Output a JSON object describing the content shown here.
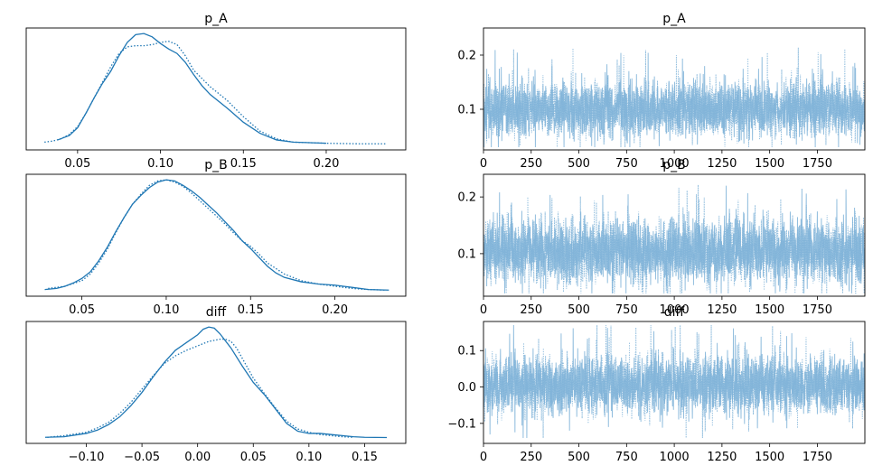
{
  "chart_data": [
    {
      "type": "line",
      "title": "p_A",
      "xlabel": "",
      "ylabel": "",
      "xlim": [
        0.019,
        0.248
      ],
      "ylim": [
        -0.05,
        1.05
      ],
      "y_ticks_visible": false,
      "x_ticks": [
        "0.05",
        "0.10",
        "0.15",
        "0.20"
      ],
      "series": [
        {
          "style": "solid",
          "color": "#1f77b4",
          "x": [
            0.038,
            0.045,
            0.05,
            0.055,
            0.06,
            0.065,
            0.07,
            0.075,
            0.08,
            0.085,
            0.09,
            0.095,
            0.1,
            0.105,
            0.11,
            0.115,
            0.12,
            0.125,
            0.13,
            0.14,
            0.15,
            0.16,
            0.17,
            0.18,
            0.19,
            0.2
          ],
          "y": [
            0.04,
            0.08,
            0.15,
            0.28,
            0.42,
            0.55,
            0.66,
            0.8,
            0.92,
            0.99,
            1.0,
            0.97,
            0.91,
            0.86,
            0.82,
            0.74,
            0.63,
            0.53,
            0.45,
            0.33,
            0.2,
            0.1,
            0.04,
            0.02,
            0.015,
            0.01
          ]
        },
        {
          "style": "dotted",
          "color": "#1f77b4",
          "x": [
            0.03,
            0.035,
            0.04,
            0.045,
            0.05,
            0.055,
            0.06,
            0.065,
            0.07,
            0.075,
            0.08,
            0.085,
            0.09,
            0.095,
            0.1,
            0.105,
            0.11,
            0.115,
            0.12,
            0.13,
            0.14,
            0.15,
            0.16,
            0.17,
            0.18,
            0.2,
            0.22,
            0.236
          ],
          "y": [
            0.02,
            0.03,
            0.05,
            0.09,
            0.16,
            0.28,
            0.42,
            0.56,
            0.7,
            0.82,
            0.88,
            0.89,
            0.89,
            0.9,
            0.92,
            0.93,
            0.9,
            0.8,
            0.67,
            0.52,
            0.4,
            0.25,
            0.12,
            0.05,
            0.02,
            0.01,
            0.005,
            0.005
          ]
        }
      ]
    },
    {
      "type": "line",
      "title": "p_A",
      "xlabel": "",
      "ylabel": "",
      "xlim": [
        0,
        1999
      ],
      "ylim": [
        0.025,
        0.25
      ],
      "x_ticks": [
        "0",
        "250",
        "500",
        "750",
        "1000",
        "1250",
        "1500",
        "1750"
      ],
      "y_ticks": [
        "0.1",
        "0.2"
      ],
      "series": [
        {
          "style": "solid",
          "color": "#7fb3d8",
          "mean": 0.1,
          "sd": 0.025,
          "min": 0.03,
          "max": 0.24,
          "n": 2000
        },
        {
          "style": "dotted",
          "color": "#7fb3d8",
          "mean": 0.1,
          "sd": 0.025,
          "min": 0.03,
          "max": 0.24,
          "n": 2000
        }
      ]
    },
    {
      "type": "line",
      "title": "p_B",
      "xlabel": "",
      "ylabel": "",
      "xlim": [
        0.017,
        0.242
      ],
      "ylim": [
        -0.05,
        1.05
      ],
      "y_ticks_visible": false,
      "x_ticks": [
        "0.05",
        "0.10",
        "0.15",
        "0.20"
      ],
      "series": [
        {
          "style": "solid",
          "color": "#1f77b4",
          "x": [
            0.028,
            0.035,
            0.04,
            0.045,
            0.05,
            0.055,
            0.06,
            0.065,
            0.07,
            0.075,
            0.08,
            0.085,
            0.09,
            0.095,
            0.1,
            0.105,
            0.11,
            0.115,
            0.12,
            0.125,
            0.13,
            0.135,
            0.14,
            0.145,
            0.15,
            0.155,
            0.16,
            0.165,
            0.17,
            0.18,
            0.19,
            0.2,
            0.21,
            0.22,
            0.232
          ],
          "y": [
            0.01,
            0.02,
            0.04,
            0.07,
            0.11,
            0.17,
            0.27,
            0.39,
            0.53,
            0.66,
            0.78,
            0.86,
            0.93,
            0.98,
            1.0,
            0.99,
            0.95,
            0.9,
            0.84,
            0.77,
            0.7,
            0.62,
            0.54,
            0.45,
            0.38,
            0.3,
            0.22,
            0.16,
            0.12,
            0.08,
            0.06,
            0.05,
            0.03,
            0.01,
            0.005
          ]
        },
        {
          "style": "dotted",
          "color": "#1f77b4",
          "x": [
            0.03,
            0.04,
            0.05,
            0.055,
            0.06,
            0.065,
            0.07,
            0.075,
            0.08,
            0.085,
            0.09,
            0.095,
            0.1,
            0.105,
            0.11,
            0.115,
            0.12,
            0.125,
            0.13,
            0.135,
            0.14,
            0.145,
            0.15,
            0.155,
            0.16,
            0.17,
            0.18,
            0.19,
            0.2,
            0.21,
            0.22,
            0.23
          ],
          "y": [
            0.02,
            0.04,
            0.09,
            0.15,
            0.25,
            0.37,
            0.52,
            0.66,
            0.78,
            0.87,
            0.95,
            0.99,
            1.0,
            0.98,
            0.94,
            0.88,
            0.81,
            0.74,
            0.67,
            0.6,
            0.52,
            0.45,
            0.4,
            0.33,
            0.25,
            0.15,
            0.09,
            0.06,
            0.04,
            0.02,
            0.01,
            0.005
          ]
        }
      ]
    },
    {
      "type": "line",
      "title": "p_B",
      "xlabel": "",
      "ylabel": "",
      "xlim": [
        0,
        1999
      ],
      "ylim": [
        0.025,
        0.24
      ],
      "x_ticks": [
        "0",
        "250",
        "500",
        "750",
        "1000",
        "1250",
        "1500",
        "1750"
      ],
      "y_ticks": [
        "0.1",
        "0.2"
      ],
      "series": [
        {
          "style": "solid",
          "color": "#7fb3d8",
          "mean": 0.105,
          "sd": 0.028,
          "min": 0.03,
          "max": 0.23,
          "n": 2000
        },
        {
          "style": "dotted",
          "color": "#7fb3d8",
          "mean": 0.105,
          "sd": 0.028,
          "min": 0.03,
          "max": 0.23,
          "n": 2000
        }
      ]
    },
    {
      "type": "line",
      "title": "diff",
      "xlabel": "",
      "ylabel": "",
      "xlim": [
        -0.154,
        0.187
      ],
      "ylim": [
        -0.05,
        1.05
      ],
      "y_ticks_visible": false,
      "x_ticks": [
        "−0.10",
        "−0.05",
        "0.00",
        "0.05",
        "0.10",
        "0.15"
      ],
      "series": [
        {
          "style": "solid",
          "color": "#1f77b4",
          "x": [
            -0.137,
            -0.12,
            -0.1,
            -0.09,
            -0.08,
            -0.07,
            -0.06,
            -0.05,
            -0.04,
            -0.03,
            -0.02,
            -0.01,
            0.0,
            0.005,
            0.01,
            0.015,
            0.02,
            0.03,
            0.04,
            0.05,
            0.06,
            0.07,
            0.08,
            0.09,
            0.1,
            0.11,
            0.12,
            0.13,
            0.14,
            0.15,
            0.16,
            0.17
          ],
          "y": [
            0.005,
            0.01,
            0.04,
            0.07,
            0.12,
            0.19,
            0.29,
            0.41,
            0.55,
            0.68,
            0.79,
            0.86,
            0.93,
            0.98,
            1.0,
            0.99,
            0.94,
            0.81,
            0.65,
            0.5,
            0.39,
            0.26,
            0.13,
            0.06,
            0.04,
            0.04,
            0.03,
            0.02,
            0.01,
            0.005,
            0.004,
            0.003
          ]
        },
        {
          "style": "dotted",
          "color": "#1f77b4",
          "x": [
            -0.135,
            -0.12,
            -0.1,
            -0.09,
            -0.08,
            -0.07,
            -0.06,
            -0.05,
            -0.04,
            -0.03,
            -0.02,
            -0.01,
            0.0,
            0.01,
            0.02,
            0.025,
            0.03,
            0.035,
            0.04,
            0.05,
            0.06,
            0.07,
            0.08,
            0.09,
            0.1,
            0.11,
            0.12,
            0.13,
            0.14
          ],
          "y": [
            0.005,
            0.02,
            0.05,
            0.09,
            0.14,
            0.22,
            0.32,
            0.44,
            0.56,
            0.67,
            0.74,
            0.79,
            0.83,
            0.87,
            0.89,
            0.89,
            0.87,
            0.81,
            0.72,
            0.54,
            0.4,
            0.27,
            0.15,
            0.08,
            0.05,
            0.03,
            0.02,
            0.01,
            0.005
          ]
        }
      ]
    },
    {
      "type": "line",
      "title": "diff",
      "xlabel": "",
      "ylabel": "",
      "xlim": [
        0,
        1999
      ],
      "ylim": [
        -0.155,
        0.18
      ],
      "x_ticks": [
        "0",
        "250",
        "500",
        "750",
        "1000",
        "1250",
        "1500",
        "1750"
      ],
      "y_ticks": [
        "−0.1",
        "0.0",
        "0.1"
      ],
      "series": [
        {
          "style": "solid",
          "color": "#7fb3d8",
          "mean": 0.005,
          "sd": 0.04,
          "min": -0.14,
          "max": 0.17,
          "n": 2000
        },
        {
          "style": "dotted",
          "color": "#7fb3d8",
          "mean": 0.005,
          "sd": 0.04,
          "min": -0.14,
          "max": 0.17,
          "n": 2000
        }
      ]
    }
  ]
}
